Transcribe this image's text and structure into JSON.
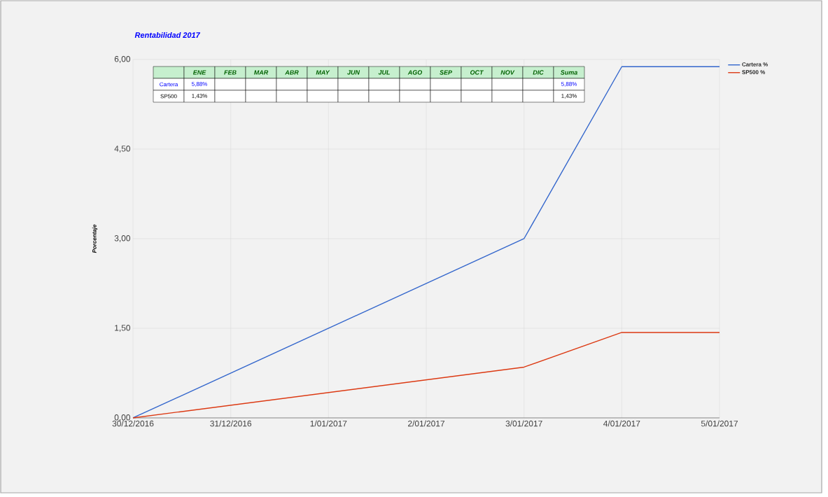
{
  "chart_data": {
    "type": "line",
    "title": "Rentabilidad 2017",
    "ylabel": "Porcentaje",
    "x": [
      "2016-12-30",
      "2017-01-03",
      "2017-01-04",
      "2017-01-05"
    ],
    "series": [
      {
        "name": "Cartera %",
        "color": "#3366cc",
        "values": [
          0,
          3.0,
          5.88,
          5.88
        ]
      },
      {
        "name": "SP500 %",
        "color": "#dc3912",
        "values": [
          0,
          0.85,
          1.43,
          1.43
        ]
      }
    ],
    "xlim": [
      "2016-12-30",
      "2017-01-05"
    ],
    "xticks": [
      {
        "value": "2016-12-30",
        "label": "30/12/2016"
      },
      {
        "value": "2016-12-31",
        "label": "31/12/2016"
      },
      {
        "value": "2017-01-01",
        "label": "1/01/2017"
      },
      {
        "value": "2017-01-02",
        "label": "2/01/2017"
      },
      {
        "value": "2017-01-03",
        "label": "3/01/2017"
      },
      {
        "value": "2017-01-04",
        "label": "4/01/2017"
      },
      {
        "value": "2017-01-05",
        "label": "5/01/2017"
      }
    ],
    "ylim": [
      0,
      6
    ],
    "yticks": [
      {
        "value": 0,
        "label": "0,00"
      },
      {
        "value": 1.5,
        "label": "1,50"
      },
      {
        "value": 3,
        "label": "3,00"
      },
      {
        "value": 4.5,
        "label": "4,50"
      },
      {
        "value": 6,
        "label": "6,00"
      }
    ],
    "grid": true,
    "legend": "top right",
    "annotations": [
      "ENE",
      "FEB",
      "MAR",
      "ABR",
      "MAY",
      "JUN",
      "JUL",
      "AGO",
      "SEP",
      "OCT",
      "NOV",
      "DIC",
      "Suma",
      "Cartera",
      "5,88%",
      "5,88%",
      "SP500",
      "1,43%",
      "1,43%"
    ]
  }
}
